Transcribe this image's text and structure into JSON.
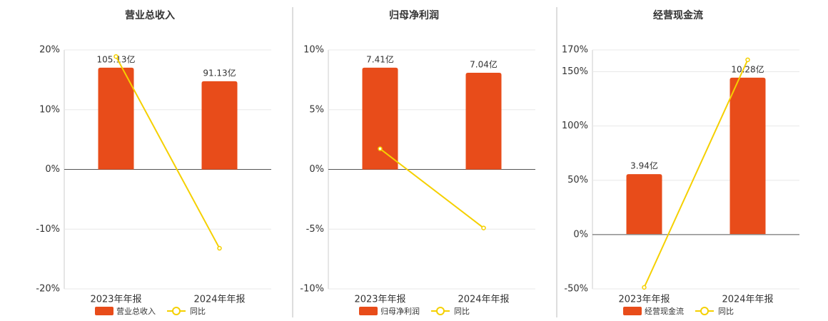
{
  "chart_data": [
    {
      "type": "bar",
      "title": "营业总收入",
      "categories": [
        "2023年年报",
        "2024年年报"
      ],
      "series": [
        {
          "name": "营业总收入",
          "color": "#e84c1a",
          "axis": "y2",
          "values": [
            105.13,
            91.13
          ],
          "value_labels": [
            "105.13亿",
            "91.13亿"
          ]
        },
        {
          "name": "同比",
          "color": "#f5d000",
          "type": "line",
          "values": [
            18.9,
            -13.2
          ]
        }
      ],
      "ylim": [
        -20,
        20
      ],
      "yticks": [
        {
          "value": -20,
          "label": "-20%"
        },
        {
          "value": -10,
          "label": "-10%"
        },
        {
          "value": 0,
          "label": "0%"
        },
        {
          "value": 10,
          "label": "10%"
        },
        {
          "value": 20,
          "label": "20%"
        }
      ],
      "y2lim": [
        -123.5,
        123.5
      ],
      "grid": true
    },
    {
      "type": "bar",
      "title": "归母净利润",
      "categories": [
        "2023年年报",
        "2024年年报"
      ],
      "series": [
        {
          "name": "归母净利润",
          "color": "#e84c1a",
          "axis": "y2",
          "values": [
            7.41,
            7.04
          ],
          "value_labels": [
            "7.41亿",
            "7.04亿"
          ]
        },
        {
          "name": "同比",
          "color": "#f5d000",
          "type": "line",
          "values": [
            1.73,
            -4.9
          ]
        }
      ],
      "ylim": [
        -10,
        10
      ],
      "yticks": [
        {
          "value": -10,
          "label": "-10%"
        },
        {
          "value": -5,
          "label": "-5%"
        },
        {
          "value": 0,
          "label": "0%"
        },
        {
          "value": 5,
          "label": "5%"
        },
        {
          "value": 10,
          "label": "10%"
        }
      ],
      "y2lim": [
        -8.7,
        8.7
      ],
      "grid": true
    },
    {
      "type": "bar",
      "title": "经营现金流",
      "categories": [
        "2023年年报",
        "2024年年报"
      ],
      "series": [
        {
          "name": "经营现金流",
          "color": "#e84c1a",
          "axis": "y2",
          "values": [
            3.94,
            10.28
          ],
          "value_labels": [
            "3.94亿",
            "10.28亿"
          ]
        },
        {
          "name": "同比",
          "color": "#f5d000",
          "type": "line",
          "values": [
            -48.6,
            160.9
          ]
        }
      ],
      "ylim": [
        -50,
        170
      ],
      "yticks": [
        {
          "value": -50,
          "label": "-50%"
        },
        {
          "value": 0,
          "label": "0%"
        },
        {
          "value": 50,
          "label": "50%"
        },
        {
          "value": 100,
          "label": "100%"
        },
        {
          "value": 150,
          "label": "150%"
        },
        {
          "value": 170,
          "label": "170%"
        }
      ],
      "y2lim": [
        -3.6,
        12.1
      ],
      "grid": true
    }
  ]
}
